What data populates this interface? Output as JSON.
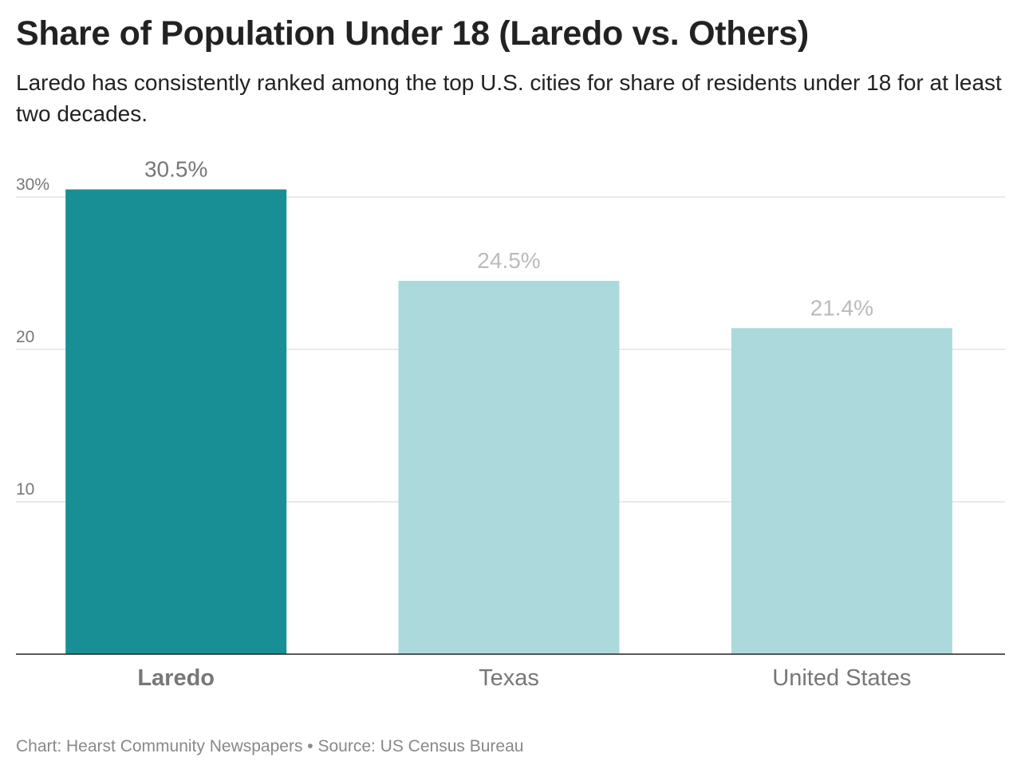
{
  "chart_data": {
    "type": "bar",
    "title": "Share of Population Under 18 (Laredo vs. Others)",
    "subtitle": "Laredo has consistently ranked among the top U.S. cities for share of residents under 18 for at least two decades.",
    "categories": [
      "Laredo",
      "Texas",
      "United States"
    ],
    "values": [
      30.5,
      24.5,
      21.4
    ],
    "data_labels": [
      "30.5%",
      "24.5%",
      "21.4%"
    ],
    "highlighted": "Laredo",
    "ylim": [
      0,
      30
    ],
    "yticks": [
      10,
      20,
      30
    ],
    "ytick_labels": [
      "10",
      "20",
      "30%"
    ],
    "grid": true,
    "xlabel": "",
    "ylabel": "",
    "colors": {
      "highlight": "#178f95",
      "other": "#acdadc",
      "highlight_label": "#777777",
      "other_label": "#bbbbbb"
    }
  },
  "footer": "Chart: Hearst Community Newspapers • Source: US Census Bureau"
}
